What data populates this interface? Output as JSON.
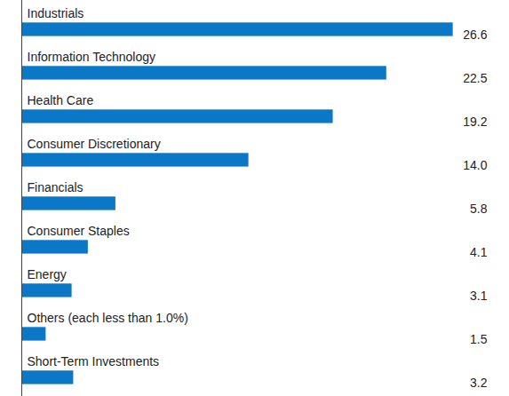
{
  "chart_data": {
    "type": "bar",
    "orientation": "horizontal",
    "categories": [
      "Industrials",
      "Information Technology",
      "Health Care",
      "Consumer Discretionary",
      "Financials",
      "Consumer Staples",
      "Energy",
      "Others (each less than 1.0%)",
      "Short-Term Investments"
    ],
    "values": [
      26.6,
      22.5,
      19.2,
      14.0,
      5.8,
      4.1,
      3.1,
      1.5,
      3.2
    ],
    "value_labels": [
      "26.6",
      "22.5",
      "19.2",
      "14.0",
      "5.8",
      "4.1",
      "3.1",
      "1.5",
      "3.2"
    ],
    "color": "#0b77c7",
    "xlim": [
      0,
      28.7
    ],
    "data_labels": true,
    "tick_labels": false
  }
}
